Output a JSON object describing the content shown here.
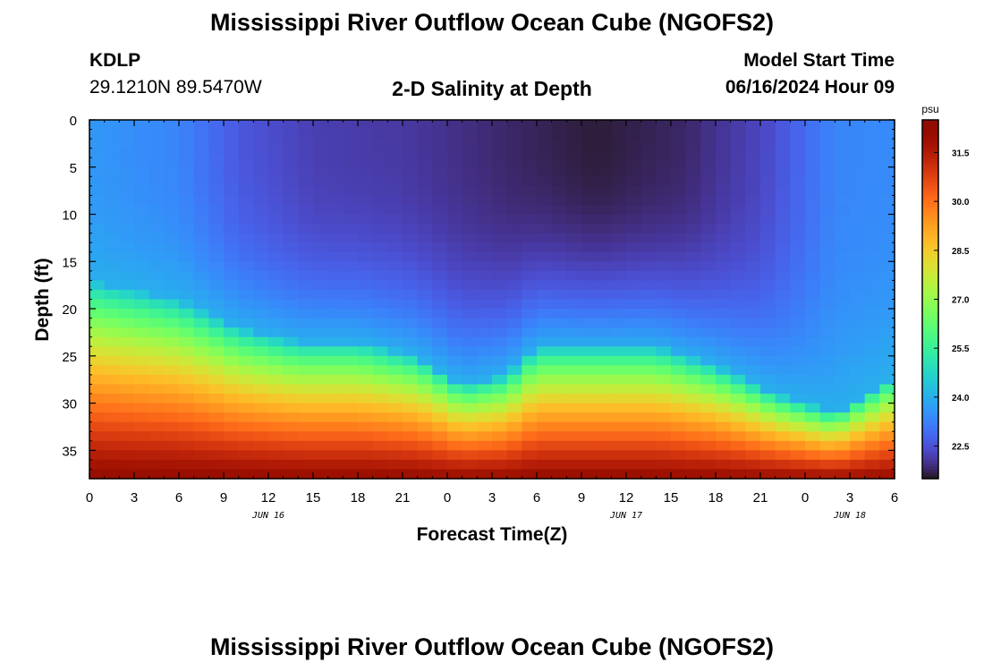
{
  "header": {
    "title_top": "Mississippi River Outflow Ocean Cube (NGOFS2)",
    "title_bottom": "Mississippi River Outflow Ocean Cube (NGOFS2)",
    "station_id": "KDLP",
    "station_coords": "29.1210N  89.5470W",
    "product_title": "2-D Salinity at Depth",
    "model_start_label": "Model Start Time",
    "model_start_value": "06/16/2024 Hour 09"
  },
  "chart_data": {
    "type": "heatmap",
    "title": "2-D Salinity at Depth",
    "xlabel": "Forecast Time(Z)",
    "ylabel": "Depth (ft)",
    "x_tick_labels": [
      "0",
      "3",
      "6",
      "9",
      "12",
      "15",
      "18",
      "21",
      "0",
      "3",
      "6",
      "9",
      "12",
      "15",
      "18",
      "21",
      "0",
      "3",
      "6"
    ],
    "x_range_hours": [
      0,
      54
    ],
    "date_labels": [
      {
        "label": "JUN 16",
        "hour": 12
      },
      {
        "label": "JUN 17",
        "hour": 36
      },
      {
        "label": "JUN 18",
        "hour": 51
      }
    ],
    "y_ticks": [
      0,
      5,
      10,
      15,
      20,
      25,
      30,
      35
    ],
    "y_range": [
      0,
      38
    ],
    "y_inverted": true,
    "colorbar": {
      "unit": "psu",
      "ticks": [
        31.5,
        30.0,
        28.5,
        27.0,
        25.5,
        24.0,
        22.5
      ],
      "range": [
        21.5,
        32.5
      ],
      "colormap": "turbo"
    },
    "fresh_layer_salinity_psu": 22.3,
    "halocline_depth_ft": [
      {
        "hour": 0,
        "depth": 17
      },
      {
        "hour": 6,
        "depth": 19
      },
      {
        "hour": 10,
        "depth": 22
      },
      {
        "hour": 14,
        "depth": 23.5
      },
      {
        "hour": 18,
        "depth": 23.5
      },
      {
        "hour": 22,
        "depth": 25
      },
      {
        "hour": 25,
        "depth": 28
      },
      {
        "hour": 28,
        "depth": 27
      },
      {
        "hour": 30,
        "depth": 24
      },
      {
        "hour": 34,
        "depth": 24
      },
      {
        "hour": 38,
        "depth": 24
      },
      {
        "hour": 42,
        "depth": 26
      },
      {
        "hour": 46,
        "depth": 29
      },
      {
        "hour": 50,
        "depth": 31
      },
      {
        "hour": 54,
        "depth": 27
      }
    ],
    "surface_salinity_psu": [
      {
        "hour": 0,
        "salinity": 23.6
      },
      {
        "hour": 6,
        "salinity": 23.3
      },
      {
        "hour": 10,
        "salinity": 22.6
      },
      {
        "hour": 15,
        "salinity": 22.2
      },
      {
        "hour": 21,
        "salinity": 22.1
      },
      {
        "hour": 28,
        "salinity": 21.8
      },
      {
        "hour": 34,
        "salinity": 21.6
      },
      {
        "hour": 40,
        "salinity": 21.8
      },
      {
        "hour": 45,
        "salinity": 22.3
      },
      {
        "hour": 50,
        "salinity": 23.3
      },
      {
        "hour": 54,
        "salinity": 23.4
      }
    ]
  }
}
